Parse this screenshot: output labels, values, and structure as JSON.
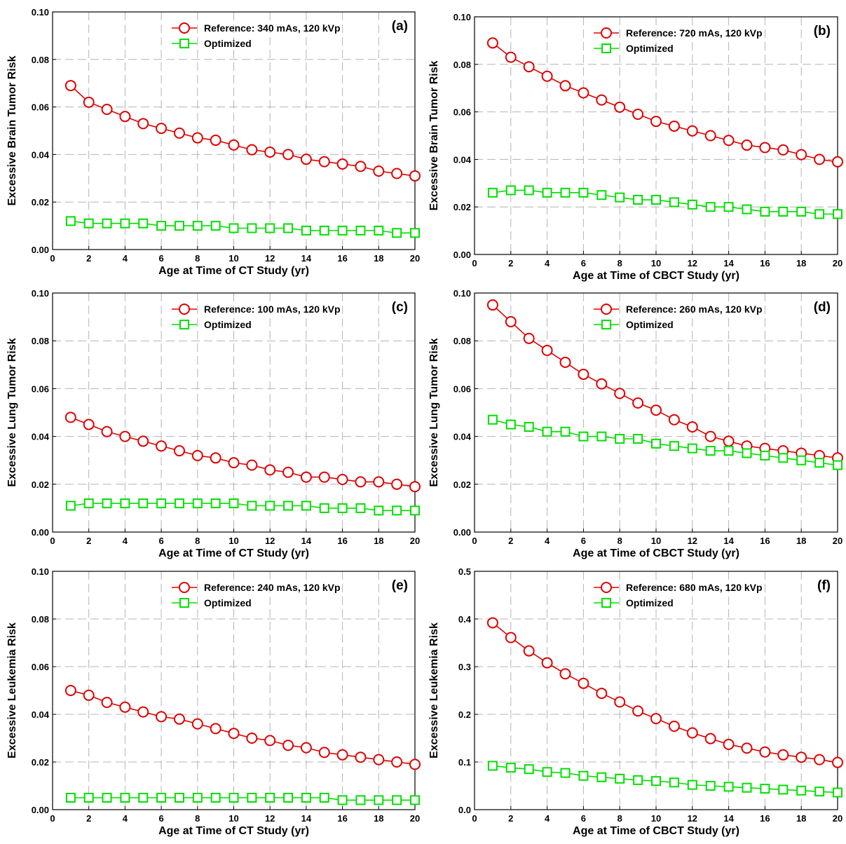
{
  "colors": {
    "reference": "#e00000",
    "optimized": "#00e000",
    "grid": "#b4b4b4"
  },
  "chart_data": [
    {
      "type": "line",
      "panel": "(a)",
      "xlabel": "Age at Time of CT Study (yr)",
      "ylabel": "Excessive Brain Tumor Risk",
      "xlim": [
        0,
        20
      ],
      "ylim": [
        0,
        0.1
      ],
      "xticks": [
        "0",
        "2",
        "4",
        "6",
        "8",
        "10",
        "12",
        "14",
        "16",
        "18",
        "20"
      ],
      "yticks": [
        "0.00",
        "0.02",
        "0.04",
        "0.06",
        "0.08",
        "0.10"
      ],
      "x": [
        1,
        2,
        3,
        4,
        5,
        6,
        7,
        8,
        9,
        10,
        11,
        12,
        13,
        14,
        15,
        16,
        17,
        18,
        19,
        20
      ],
      "grid": true,
      "legend": "top-right",
      "series": [
        {
          "name": "Reference: 340 mAs, 120 kVp",
          "marker": "circle",
          "values": [
            0.069,
            0.062,
            0.059,
            0.056,
            0.053,
            0.051,
            0.049,
            0.047,
            0.046,
            0.044,
            0.042,
            0.041,
            0.04,
            0.038,
            0.037,
            0.036,
            0.035,
            0.033,
            0.032,
            0.031
          ]
        },
        {
          "name": "Optimized",
          "marker": "square",
          "values": [
            0.012,
            0.011,
            0.011,
            0.011,
            0.011,
            0.01,
            0.01,
            0.01,
            0.01,
            0.009,
            0.009,
            0.009,
            0.009,
            0.008,
            0.008,
            0.008,
            0.008,
            0.008,
            0.007,
            0.007
          ]
        }
      ]
    },
    {
      "type": "line",
      "panel": "(b)",
      "xlabel": "Age at Time of CBCT Study (yr)",
      "ylabel": "Excessive Brain Tumor Risk",
      "xlim": [
        0,
        20
      ],
      "ylim": [
        0,
        0.1
      ],
      "xticks": [
        "0",
        "2",
        "4",
        "6",
        "8",
        "10",
        "12",
        "14",
        "16",
        "18",
        "20"
      ],
      "yticks": [
        "0.00",
        "0.02",
        "0.04",
        "0.06",
        "0.08",
        "0.10"
      ],
      "x": [
        1,
        2,
        3,
        4,
        5,
        6,
        7,
        8,
        9,
        10,
        11,
        12,
        13,
        14,
        15,
        16,
        17,
        18,
        19,
        20
      ],
      "grid": true,
      "legend": "top-right",
      "series": [
        {
          "name": "Reference: 720 mAs, 120 kVp",
          "marker": "circle",
          "values": [
            0.089,
            0.083,
            0.079,
            0.075,
            0.071,
            0.068,
            0.065,
            0.062,
            0.059,
            0.056,
            0.054,
            0.052,
            0.05,
            0.048,
            0.046,
            0.045,
            0.044,
            0.042,
            0.04,
            0.039
          ]
        },
        {
          "name": "Optimized",
          "marker": "square",
          "values": [
            0.026,
            0.027,
            0.027,
            0.026,
            0.026,
            0.026,
            0.025,
            0.024,
            0.023,
            0.023,
            0.022,
            0.021,
            0.02,
            0.02,
            0.019,
            0.018,
            0.018,
            0.018,
            0.017,
            0.017
          ]
        }
      ]
    },
    {
      "type": "line",
      "panel": "(c)",
      "xlabel": "Age at Time of CT Study (yr)",
      "ylabel": "Excessive Lung Tumor Risk",
      "xlim": [
        0,
        20
      ],
      "ylim": [
        0,
        0.1
      ],
      "xticks": [
        "0",
        "2",
        "4",
        "6",
        "8",
        "10",
        "12",
        "14",
        "16",
        "18",
        "20"
      ],
      "yticks": [
        "0.00",
        "0.02",
        "0.04",
        "0.06",
        "0.08",
        "0.10"
      ],
      "x": [
        1,
        2,
        3,
        4,
        5,
        6,
        7,
        8,
        9,
        10,
        11,
        12,
        13,
        14,
        15,
        16,
        17,
        18,
        19,
        20
      ],
      "grid": true,
      "legend": "top-right",
      "series": [
        {
          "name": "Reference: 100 mAs, 120 kVp",
          "marker": "circle",
          "values": [
            0.048,
            0.045,
            0.042,
            0.04,
            0.038,
            0.036,
            0.034,
            0.032,
            0.031,
            0.029,
            0.028,
            0.026,
            0.025,
            0.023,
            0.023,
            0.022,
            0.021,
            0.021,
            0.02,
            0.019
          ]
        },
        {
          "name": "Optimized",
          "marker": "square",
          "values": [
            0.011,
            0.012,
            0.012,
            0.012,
            0.012,
            0.012,
            0.012,
            0.012,
            0.012,
            0.012,
            0.011,
            0.011,
            0.011,
            0.011,
            0.01,
            0.01,
            0.01,
            0.009,
            0.009,
            0.009
          ]
        }
      ]
    },
    {
      "type": "line",
      "panel": "(d)",
      "xlabel": "Age at Time of CBCT Study (yr)",
      "ylabel": "Excessive Lung Tumor Risk",
      "xlim": [
        0,
        20
      ],
      "ylim": [
        0,
        0.1
      ],
      "xticks": [
        "0",
        "2",
        "4",
        "6",
        "8",
        "10",
        "12",
        "14",
        "16",
        "18",
        "20"
      ],
      "yticks": [
        "0.00",
        "0.02",
        "0.04",
        "0.06",
        "0.08",
        "0.10"
      ],
      "x": [
        1,
        2,
        3,
        4,
        5,
        6,
        7,
        8,
        9,
        10,
        11,
        12,
        13,
        14,
        15,
        16,
        17,
        18,
        19,
        20
      ],
      "grid": true,
      "legend": "top-right",
      "series": [
        {
          "name": "Reference: 260 mAs, 120 kVp",
          "marker": "circle",
          "values": [
            0.095,
            0.088,
            0.081,
            0.076,
            0.071,
            0.066,
            0.062,
            0.058,
            0.054,
            0.051,
            0.047,
            0.044,
            0.04,
            0.038,
            0.036,
            0.035,
            0.034,
            0.033,
            0.032,
            0.031
          ]
        },
        {
          "name": "Optimized",
          "marker": "square",
          "values": [
            0.047,
            0.045,
            0.044,
            0.042,
            0.042,
            0.04,
            0.04,
            0.039,
            0.039,
            0.037,
            0.036,
            0.035,
            0.034,
            0.034,
            0.033,
            0.032,
            0.031,
            0.03,
            0.029,
            0.028
          ]
        }
      ]
    },
    {
      "type": "line",
      "panel": "(e)",
      "xlabel": "Age at Time of CT Study (yr)",
      "ylabel": "Excessive Leukemia Risk",
      "xlim": [
        0,
        20
      ],
      "ylim": [
        0,
        0.1
      ],
      "xticks": [
        "0",
        "2",
        "4",
        "6",
        "8",
        "10",
        "12",
        "14",
        "16",
        "18",
        "20"
      ],
      "yticks": [
        "0.00",
        "0.02",
        "0.04",
        "0.06",
        "0.08",
        "0.10"
      ],
      "x": [
        1,
        2,
        3,
        4,
        5,
        6,
        7,
        8,
        9,
        10,
        11,
        12,
        13,
        14,
        15,
        16,
        17,
        18,
        19,
        20
      ],
      "grid": true,
      "legend": "top-right",
      "series": [
        {
          "name": "Reference: 240 mAs, 120 kVp",
          "marker": "circle",
          "values": [
            0.05,
            0.048,
            0.045,
            0.043,
            0.041,
            0.039,
            0.038,
            0.036,
            0.034,
            0.032,
            0.03,
            0.029,
            0.027,
            0.026,
            0.024,
            0.023,
            0.022,
            0.021,
            0.02,
            0.019
          ]
        },
        {
          "name": "Optimized",
          "marker": "square",
          "values": [
            0.005,
            0.005,
            0.005,
            0.005,
            0.005,
            0.005,
            0.005,
            0.005,
            0.005,
            0.005,
            0.005,
            0.005,
            0.005,
            0.005,
            0.005,
            0.004,
            0.004,
            0.004,
            0.004,
            0.004
          ]
        }
      ]
    },
    {
      "type": "line",
      "panel": "(f)",
      "xlabel": "Age at Time of CBCT Study (yr)",
      "ylabel": "Excessive Leukemia Risk",
      "xlim": [
        0,
        20
      ],
      "ylim": [
        0,
        0.5
      ],
      "xticks": [
        "0",
        "2",
        "4",
        "6",
        "8",
        "10",
        "12",
        "14",
        "16",
        "18",
        "20"
      ],
      "yticks": [
        "0.0",
        "0.1",
        "0.2",
        "0.3",
        "0.4",
        "0.5"
      ],
      "x": [
        1,
        2,
        3,
        4,
        5,
        6,
        7,
        8,
        9,
        10,
        11,
        12,
        13,
        14,
        15,
        16,
        17,
        18,
        19,
        20
      ],
      "grid": true,
      "legend": "top-right",
      "series": [
        {
          "name": "Reference: 680 mAs, 120 kVp",
          "marker": "circle",
          "values": [
            0.392,
            0.361,
            0.333,
            0.308,
            0.285,
            0.265,
            0.244,
            0.226,
            0.207,
            0.191,
            0.175,
            0.161,
            0.149,
            0.137,
            0.129,
            0.121,
            0.115,
            0.11,
            0.105,
            0.099
          ]
        },
        {
          "name": "Optimized",
          "marker": "square",
          "values": [
            0.092,
            0.088,
            0.085,
            0.079,
            0.077,
            0.071,
            0.068,
            0.065,
            0.062,
            0.06,
            0.057,
            0.052,
            0.05,
            0.048,
            0.046,
            0.044,
            0.042,
            0.04,
            0.038,
            0.036
          ]
        }
      ]
    }
  ]
}
